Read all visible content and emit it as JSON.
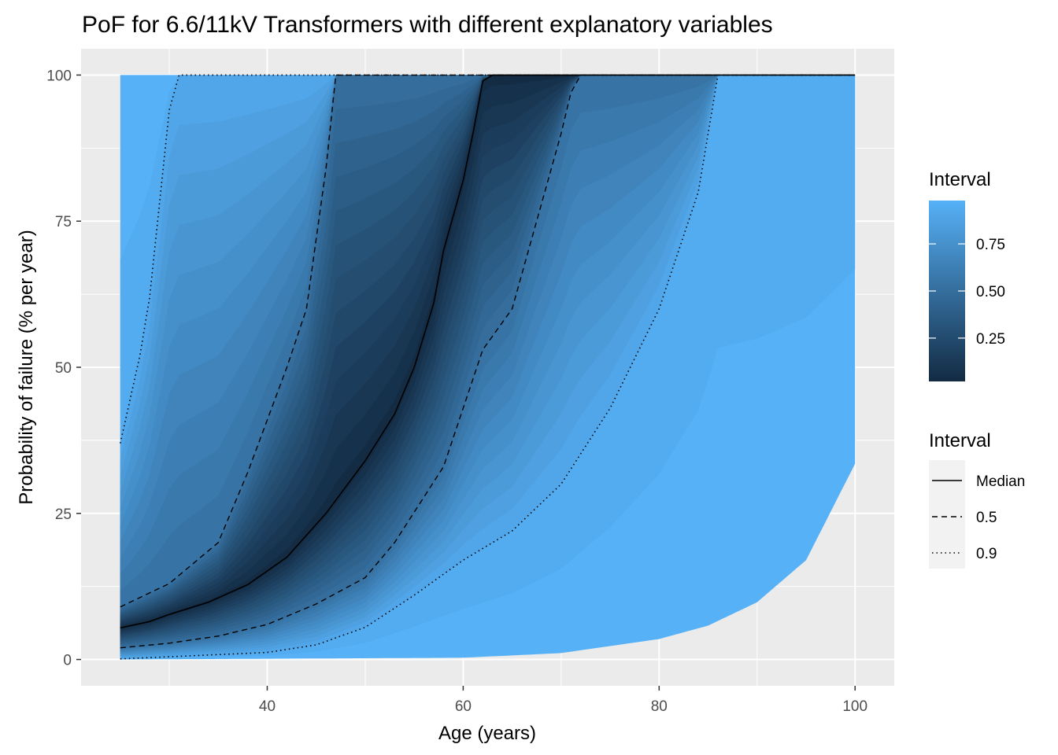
{
  "chart_data": {
    "type": "area",
    "title": "PoF for 6.6/11kV Transformers with different explanatory variables",
    "xlabel": "Age (years)",
    "ylabel": "Probability of failure (% per year)",
    "xlim": [
      21,
      104
    ],
    "ylim": [
      -4.5,
      104.5
    ],
    "x_ticks": [
      40,
      60,
      80,
      100
    ],
    "x_tick_labels": [
      "40",
      "60",
      "80",
      "100"
    ],
    "y_ticks": [
      0,
      25,
      50,
      75,
      100
    ],
    "y_tick_labels": [
      "0",
      "25",
      "50",
      "75",
      "100"
    ],
    "grid": true,
    "panel_background": "#ebebeb",
    "fill_scale": {
      "legend_title": "Interval",
      "low_color": "#132b43",
      "high_color": "#56b1f7",
      "breaks": [
        0.25,
        0.5,
        0.75
      ],
      "break_labels": [
        "0.25",
        "0.50",
        "0.75"
      ],
      "range": [
        0.02,
        0.98
      ]
    },
    "line_legend": {
      "title": "Interval",
      "entries": [
        {
          "label": "Median",
          "linetype": "solid"
        },
        {
          "label": "0.5",
          "linetype": "dashed"
        },
        {
          "label": "0.9",
          "linetype": "dotted"
        }
      ]
    },
    "bands": [
      {
        "interval": 0.98,
        "lower": [
          [
            25,
            0
          ],
          [
            60,
            0.3
          ],
          [
            70,
            1.1
          ],
          [
            80,
            3.5
          ],
          [
            85,
            5.8
          ],
          [
            90,
            9.8
          ],
          [
            95,
            17
          ],
          [
            100,
            33.5
          ]
        ],
        "upper": [
          [
            25,
            100
          ],
          [
            100,
            100
          ]
        ]
      },
      {
        "interval": 0.9,
        "lower": [
          [
            25,
            0.1
          ],
          [
            40,
            1.2
          ],
          [
            45,
            2.5
          ],
          [
            50,
            5.5
          ],
          [
            55,
            11
          ],
          [
            60,
            17
          ],
          [
            65,
            22
          ],
          [
            70,
            30
          ],
          [
            75,
            43
          ],
          [
            80,
            60
          ],
          [
            84,
            80
          ],
          [
            86,
            100
          ]
        ],
        "upper": [
          [
            25,
            37
          ],
          [
            27,
            52
          ],
          [
            28,
            62
          ],
          [
            30,
            94
          ],
          [
            31,
            100
          ]
        ]
      },
      {
        "interval": 0.5,
        "lower": [
          [
            25,
            2
          ],
          [
            30,
            2.8
          ],
          [
            35,
            4
          ],
          [
            40,
            6
          ],
          [
            45,
            9.5
          ],
          [
            50,
            14
          ],
          [
            53,
            20
          ],
          [
            58,
            33
          ],
          [
            62,
            53
          ],
          [
            65,
            60
          ],
          [
            70,
            90
          ],
          [
            71,
            97
          ],
          [
            72,
            100
          ]
        ],
        "upper": [
          [
            25,
            9
          ],
          [
            30,
            13
          ],
          [
            35,
            20
          ],
          [
            38,
            32
          ],
          [
            42,
            50
          ],
          [
            44,
            60
          ],
          [
            46,
            84
          ],
          [
            47,
            100
          ]
        ]
      },
      {
        "interval": 0.02,
        "median": [
          [
            25,
            5.4
          ],
          [
            28,
            6.5
          ],
          [
            30,
            7.7
          ],
          [
            34,
            9.8
          ],
          [
            38,
            12.8
          ],
          [
            42,
            17.5
          ],
          [
            46,
            25
          ],
          [
            50,
            34
          ],
          [
            53,
            42
          ],
          [
            55,
            50
          ],
          [
            57,
            61
          ],
          [
            58,
            70
          ],
          [
            60,
            82
          ],
          [
            61,
            90
          ],
          [
            62,
            99
          ],
          [
            63,
            100
          ],
          [
            100,
            100
          ]
        ]
      }
    ]
  }
}
